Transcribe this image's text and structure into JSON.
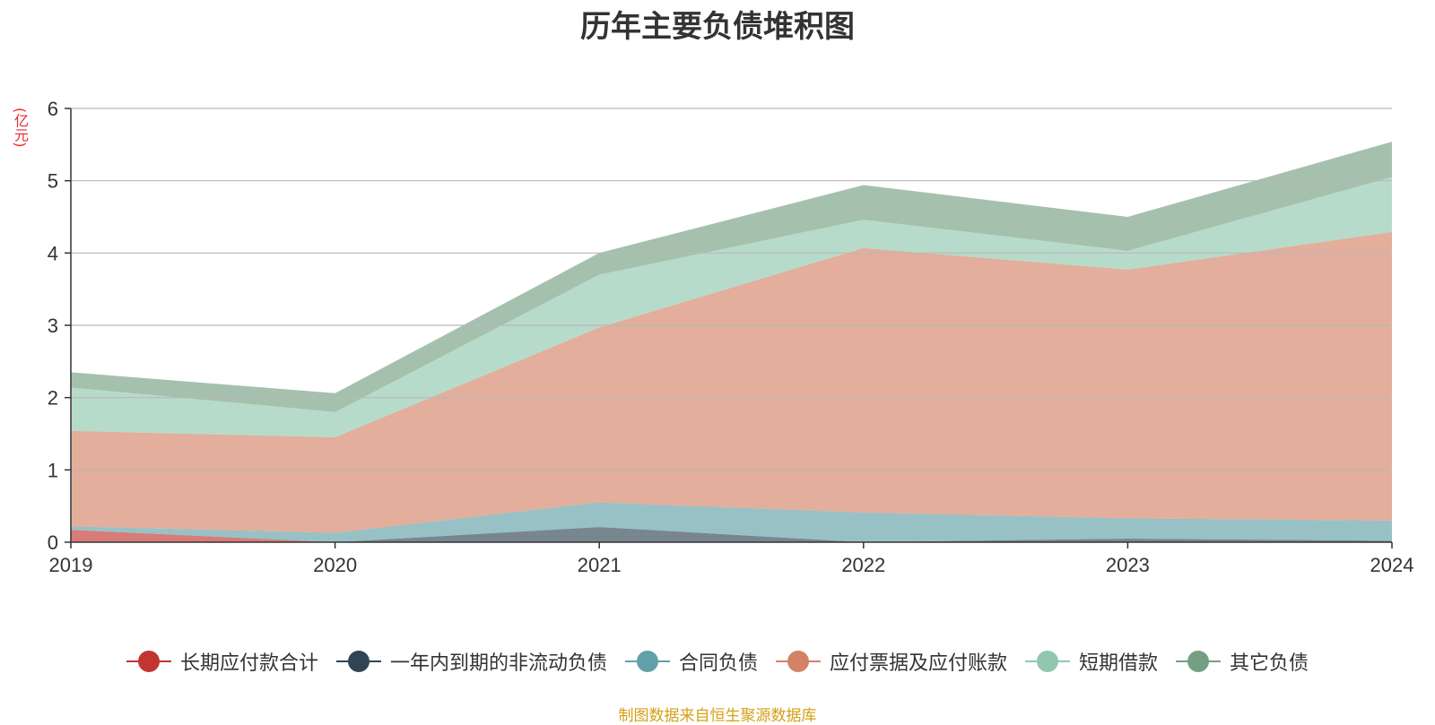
{
  "title": "历年主要负债堆积图",
  "unit": "(亿元)",
  "source": "制图数据来自恒生聚源数据库",
  "chart_data": {
    "type": "area",
    "stacked": true,
    "title": "历年主要负债堆积图",
    "ylabel": "(亿元)",
    "categories": [
      "2019",
      "2020",
      "2021",
      "2022",
      "2023",
      "2024"
    ],
    "ylim": [
      0,
      6
    ],
    "yticks": [
      0,
      1,
      2,
      3,
      4,
      5,
      6
    ],
    "grid": true,
    "legend_position": "bottom",
    "series": [
      {
        "name": "长期应付款合计",
        "color": "#c23531",
        "values": [
          0.17,
          0.0,
          0.0,
          0.0,
          0.0,
          0.0
        ]
      },
      {
        "name": "一年内到期的非流动负债",
        "color": "#2f4554",
        "values": [
          0.0,
          0.0,
          0.21,
          0.0,
          0.05,
          0.02
        ]
      },
      {
        "name": "合同负债",
        "color": "#61a0a8",
        "values": [
          0.05,
          0.13,
          0.34,
          0.41,
          0.28,
          0.28
        ]
      },
      {
        "name": "应付票据及应付账款",
        "color": "#d48265",
        "values": [
          1.32,
          1.32,
          2.42,
          3.66,
          3.44,
          3.99
        ]
      },
      {
        "name": "短期借款",
        "color": "#91c7ae",
        "values": [
          0.6,
          0.35,
          0.73,
          0.39,
          0.26,
          0.76
        ]
      },
      {
        "name": "其它负债",
        "color": "#749f83",
        "values": [
          0.21,
          0.26,
          0.3,
          0.48,
          0.47,
          0.49
        ]
      }
    ]
  }
}
